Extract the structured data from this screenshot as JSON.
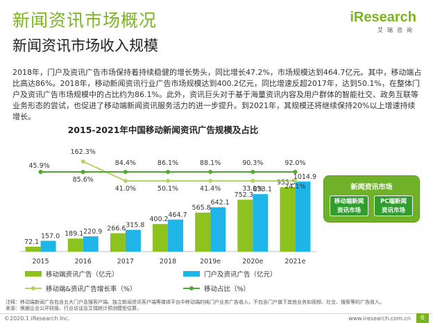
{
  "header": {
    "title": "新闻资讯市场概况",
    "subtitle": "新闻资讯市场收入规模",
    "logo_text": "iResearch",
    "logo_sub": "艾瑞咨询"
  },
  "body_text": "2018年，门户及资讯广告市场保持着持续稳健的增长势头，同比增长47.2%，市场规模达到464.7亿元。其中，移动端占比高达86%。2018年，移动新闻资讯行业广告市场规模达到400.2亿元，同比增速反超2017年，达到50.1%，在整体门户及资讯广告市场规模中的占比约为86.1%。此外，资讯巨头对于基于海量资讯内容及用户群体的智能社交、政务互联等业务形态的尝试，也促进了移动端新闻资讯服务活力的进一步提升。到2021年，其规模还将继续保持20%以上增速持续增长。",
  "chart_data": {
    "type": "bar",
    "title": "2015-2021年中国移动新闻资讯广告规模及占比",
    "categories": [
      "2015",
      "2016",
      "2017",
      "2018",
      "2019e",
      "2020e",
      "2021e"
    ],
    "series": [
      {
        "name": "移动端资讯广告（亿元）",
        "kind": "bar",
        "color": "#8dc21f",
        "values": [
          72.1,
          189.1,
          266.6,
          400.2,
          565.8,
          752.3,
          933.3
        ]
      },
      {
        "name": "门户及资讯广告（亿元）",
        "kind": "bar",
        "color": "#1fb5e8",
        "values": [
          157.0,
          220.9,
          315.8,
          464.7,
          642.1,
          833.1,
          1014.9
        ]
      },
      {
        "name": "移动端&资讯广告增长率（%）",
        "kind": "line",
        "color": "#b3d465",
        "values": [
          null,
          162.3,
          41.0,
          50.1,
          41.4,
          33.0,
          24.1
        ]
      },
      {
        "name": "移动占比（%）",
        "kind": "line",
        "color": "#4fa830",
        "values": [
          45.9,
          85.6,
          84.4,
          86.1,
          88.1,
          90.3,
          92.0
        ]
      }
    ],
    "bar_ylim": [
      0,
      1100
    ],
    "line_ylim": [
      0,
      200
    ],
    "bar_labels": {
      "mobile": [
        "72.1",
        "189.1",
        "266.6",
        "400.2",
        "565.8",
        "752.3",
        "933.3"
      ],
      "portal": [
        "157.0",
        "220.9",
        "315.8",
        "464.7",
        "642.1",
        "833.1",
        "1014.9"
      ]
    },
    "growth_labels": [
      "",
      "162.3%",
      "41.0%",
      "50.1%",
      "41.4%",
      "33.0%",
      "24.1%"
    ],
    "share_labels": [
      "45.9%",
      "85.6%",
      "84.4%",
      "86.1%",
      "88.1%",
      "90.3%",
      "92.0%"
    ]
  },
  "market_box": {
    "title": "新闻资讯市场",
    "left_line1": "移动端新闻",
    "left_line2": "资讯市场",
    "right_line1": "PC端新闻",
    "right_line2": "资讯市场"
  },
  "note": {
    "line1": "注释：移动端新闻广告包含五大门户及搜客户端、独立新闻资讯客户端等媒体平台中移动端的纯门户业务广告收入，不包含门户旗下其他业务如视频、社交、搜索等的广告收入。",
    "line2": "来源：根据企业公开财报、行业访谈及艾瑞统计预测模型估算。"
  },
  "footer": {
    "copyright": "©2020.1 iResearch Inc.",
    "url": "www.iresearch.com.cn",
    "page": "6"
  }
}
